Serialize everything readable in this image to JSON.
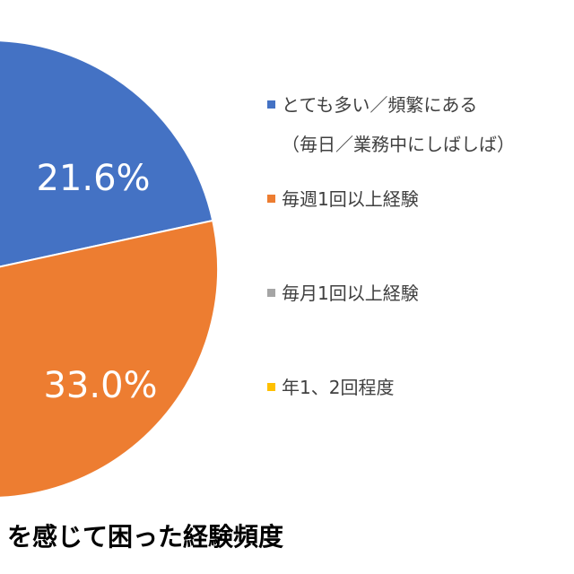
{
  "chart_data": {
    "type": "pie",
    "title": "を感じて困った経験頻度",
    "categories": [
      "とても多い／頻繁にある\n（毎日／業務中にしばしば）",
      "毎週1回以上経験",
      "毎月1回以上経験",
      "年1、2回程度"
    ],
    "values": [
      21.6,
      33.0,
      null,
      null
    ],
    "value_labels": [
      "21.6%",
      "33.0%",
      null,
      null
    ],
    "colors": [
      "#4472c4",
      "#ed7d31",
      "#a5a5a5",
      "#ffc000"
    ]
  }
}
